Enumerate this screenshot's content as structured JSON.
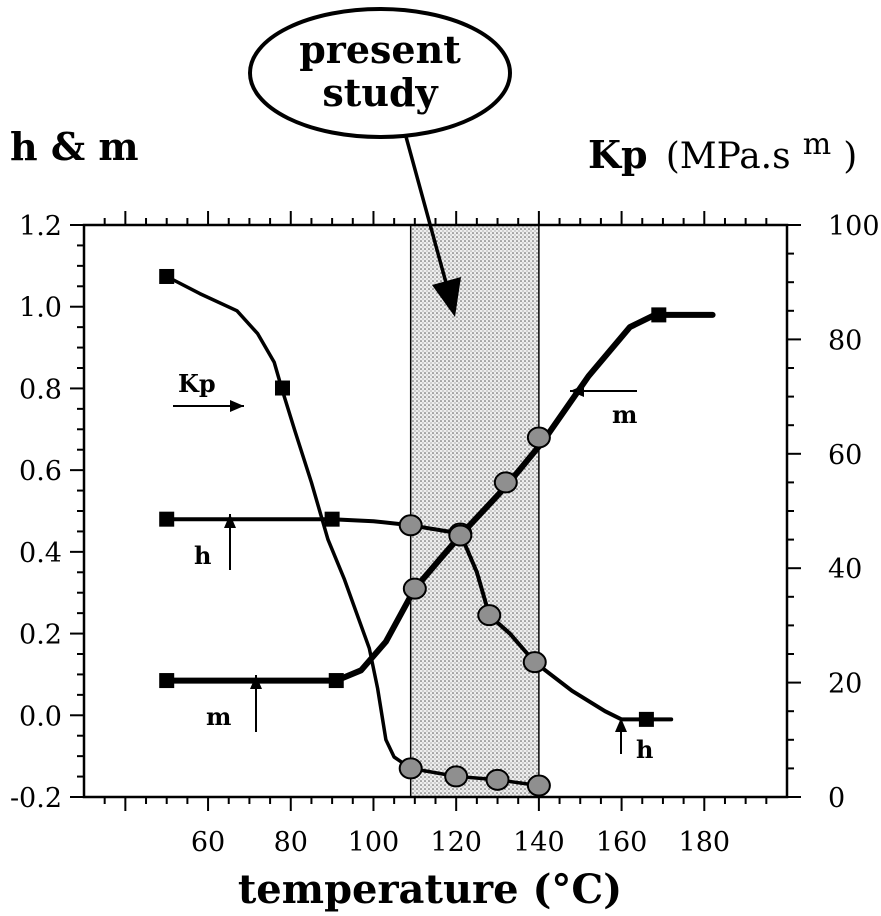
{
  "chart_data": {
    "type": "line",
    "xlabel": "temperature (°C)",
    "ylabel_left": "h & m",
    "ylabel_right_main": "Kp",
    "ylabel_right_sub": "p",
    "ylabel_right_unit": "(MPa.s",
    "ylabel_right_unit_sup": "m",
    "ylabel_right_unit_close": ")",
    "xlim": [
      30,
      200
    ],
    "ylim_left": [
      -0.2,
      1.2
    ],
    "ylim_right": [
      0,
      100
    ],
    "x_ticks": [
      60,
      80,
      100,
      120,
      140,
      160,
      180
    ],
    "y_left_ticks": [
      "-0.2",
      "0.0",
      "0.2",
      "0.4",
      "0.6",
      "0.8",
      "1.0",
      "1.2"
    ],
    "y_right_ticks": [
      "0",
      "20",
      "40",
      "60",
      "80",
      "100"
    ],
    "shaded_region": {
      "x": [
        109,
        140
      ],
      "label": "present study"
    },
    "annotation": {
      "line1": "present",
      "line2": "study"
    },
    "series": [
      {
        "name": "Kp",
        "axis": "right",
        "line": [
          [
            50,
            91
          ],
          [
            58,
            88
          ],
          [
            67,
            85
          ],
          [
            72,
            81
          ],
          [
            76,
            76
          ],
          [
            78,
            71
          ],
          [
            81,
            64
          ],
          [
            85,
            55
          ],
          [
            89,
            45
          ],
          [
            93,
            38
          ],
          [
            96,
            32
          ],
          [
            99,
            26
          ],
          [
            101,
            19
          ],
          [
            103,
            10
          ],
          [
            105,
            7
          ],
          [
            109,
            5
          ],
          [
            120,
            3.6
          ],
          [
            130,
            3
          ],
          [
            140,
            2
          ]
        ],
        "markers": [
          [
            50,
            91,
            "square"
          ],
          [
            78,
            71.5,
            "square"
          ],
          [
            109,
            5,
            "circle"
          ],
          [
            120,
            3.6,
            "circle"
          ],
          [
            130,
            3,
            "circle"
          ],
          [
            140,
            2,
            "circle"
          ]
        ],
        "label": "Kp"
      },
      {
        "name": "h",
        "axis": "left",
        "line": [
          [
            50,
            0.48
          ],
          [
            90,
            0.48
          ],
          [
            100,
            0.475
          ],
          [
            109,
            0.465
          ],
          [
            121,
            0.445
          ],
          [
            125,
            0.35
          ],
          [
            128,
            0.245
          ],
          [
            133,
            0.2
          ],
          [
            139,
            0.13
          ],
          [
            148,
            0.06
          ],
          [
            156,
            0.01
          ],
          [
            160,
            -0.01
          ],
          [
            172,
            -0.01
          ]
        ],
        "markers": [
          [
            50,
            0.48,
            "square"
          ],
          [
            90,
            0.48,
            "square"
          ],
          [
            109,
            0.465,
            "circle"
          ],
          [
            121,
            0.445,
            "circle"
          ],
          [
            128,
            0.245,
            "circle"
          ],
          [
            139,
            0.13,
            "circle"
          ],
          [
            166,
            -0.01,
            "square"
          ]
        ],
        "labels": [
          "h",
          "h"
        ]
      },
      {
        "name": "m",
        "axis": "left",
        "line": [
          [
            50,
            0.085
          ],
          [
            91,
            0.085
          ],
          [
            97,
            0.11
          ],
          [
            103,
            0.18
          ],
          [
            110,
            0.31
          ],
          [
            121,
            0.44
          ],
          [
            132,
            0.56
          ],
          [
            141,
            0.67
          ],
          [
            152,
            0.83
          ],
          [
            162,
            0.95
          ],
          [
            168,
            0.98
          ],
          [
            182,
            0.98
          ]
        ],
        "markers": [
          [
            50,
            0.085,
            "square"
          ],
          [
            91,
            0.085,
            "square"
          ],
          [
            110,
            0.31,
            "circle"
          ],
          [
            121,
            0.44,
            "circle"
          ],
          [
            132,
            0.57,
            "circle"
          ],
          [
            140,
            0.68,
            "circle"
          ],
          [
            169,
            0.98,
            "square"
          ]
        ],
        "labels": [
          "m",
          "m"
        ]
      }
    ]
  }
}
